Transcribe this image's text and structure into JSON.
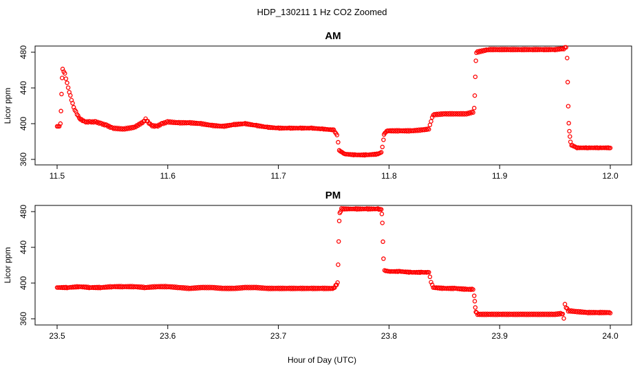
{
  "figure": {
    "title": "HDP_130211  1 Hz CO2 Zoomed",
    "xlabel": "Hour of Day (UTC)"
  },
  "colors": {
    "points": "#ff0000",
    "axes": "#000000",
    "background": "#ffffff"
  },
  "chart_data": [
    {
      "type": "scatter",
      "title": "AM",
      "xlabel": "",
      "ylabel": "Licor ppm",
      "xlim": [
        11.5,
        12.0
      ],
      "ylim": [
        360,
        490
      ],
      "xticks": [
        "11.5",
        "11.6",
        "11.7",
        "11.8",
        "11.9",
        "12.0"
      ],
      "yticks": [
        "360",
        "400",
        "440",
        "480"
      ],
      "grid": false,
      "series": [
        {
          "marker": "open-circle",
          "points": [
            [
              11.5,
              397
            ],
            [
              11.502,
              397
            ],
            [
              11.503,
              400
            ],
            [
              11.5035,
              414
            ],
            [
              11.504,
              433
            ],
            [
              11.5045,
              451
            ],
            [
              11.505,
              461
            ],
            [
              11.507,
              456
            ],
            [
              11.51,
              440
            ],
            [
              11.515,
              418
            ],
            [
              11.52,
              406
            ],
            [
              11.525,
              402
            ],
            [
              11.53,
              402
            ],
            [
              11.535,
              402
            ],
            [
              11.54,
              400
            ],
            [
              11.545,
              398
            ],
            [
              11.55,
              395
            ],
            [
              11.56,
              394
            ],
            [
              11.57,
              396
            ],
            [
              11.578,
              402
            ],
            [
              11.58,
              405
            ],
            [
              11.585,
              398
            ],
            [
              11.59,
              397
            ],
            [
              11.595,
              400
            ],
            [
              11.6,
              402
            ],
            [
              11.61,
              401
            ],
            [
              11.62,
              401
            ],
            [
              11.63,
              400
            ],
            [
              11.64,
              398
            ],
            [
              11.65,
              397
            ],
            [
              11.66,
              399
            ],
            [
              11.67,
              400
            ],
            [
              11.68,
              398
            ],
            [
              11.69,
              396
            ],
            [
              11.7,
              395
            ],
            [
              11.71,
              395
            ],
            [
              11.72,
              395
            ],
            [
              11.73,
              395
            ],
            [
              11.74,
              394
            ],
            [
              11.75,
              393
            ],
            [
              11.753,
              387
            ],
            [
              11.754,
              379
            ],
            [
              11.755,
              370
            ],
            [
              11.76,
              366
            ],
            [
              11.77,
              365
            ],
            [
              11.78,
              365
            ],
            [
              11.79,
              366
            ],
            [
              11.793,
              368
            ],
            [
              11.794,
              374
            ],
            [
              11.795,
              382
            ],
            [
              11.7955,
              388
            ],
            [
              11.798,
              392
            ],
            [
              11.81,
              392
            ],
            [
              11.82,
              392
            ],
            [
              11.83,
              393
            ],
            [
              11.836,
              394
            ],
            [
              11.837,
              399
            ],
            [
              11.838,
              403
            ],
            [
              11.84,
              410
            ],
            [
              11.85,
              411
            ],
            [
              11.86,
              411
            ],
            [
              11.87,
              411
            ],
            [
              11.876,
              413
            ],
            [
              11.877,
              418
            ],
            [
              11.8775,
              432
            ],
            [
              11.878,
              453
            ],
            [
              11.8785,
              471
            ],
            [
              11.879,
              480
            ],
            [
              11.89,
              483
            ],
            [
              11.9,
              483
            ],
            [
              11.91,
              483
            ],
            [
              11.92,
              483
            ],
            [
              11.93,
              483
            ],
            [
              11.94,
              483
            ],
            [
              11.95,
              483
            ],
            [
              11.958,
              484
            ],
            [
              11.96,
              486
            ],
            [
              11.961,
              474
            ],
            [
              11.9615,
              447
            ],
            [
              11.962,
              420
            ],
            [
              11.9625,
              401
            ],
            [
              11.963,
              392
            ],
            [
              11.9635,
              386
            ],
            [
              11.964,
              380
            ],
            [
              11.965,
              376
            ],
            [
              11.97,
              373
            ],
            [
              11.98,
              373
            ],
            [
              11.99,
              373
            ],
            [
              12.0,
              373
            ]
          ]
        }
      ]
    },
    {
      "type": "scatter",
      "title": "PM",
      "xlabel": "Hour of Day (UTC)",
      "ylabel": "Licor ppm",
      "xlim": [
        23.5,
        24.0
      ],
      "ylim": [
        355,
        490
      ],
      "xticks": [
        "23.5",
        "23.6",
        "23.7",
        "23.8",
        "23.9",
        "24.0"
      ],
      "yticks": [
        "360",
        "400",
        "440",
        "480"
      ],
      "grid": false,
      "series": [
        {
          "marker": "open-circle",
          "points": [
            [
              23.5,
              395
            ],
            [
              23.51,
              395
            ],
            [
              23.52,
              396
            ],
            [
              23.53,
              395
            ],
            [
              23.54,
              395
            ],
            [
              23.55,
              396
            ],
            [
              23.56,
              396
            ],
            [
              23.57,
              396
            ],
            [
              23.58,
              395
            ],
            [
              23.59,
              396
            ],
            [
              23.6,
              396
            ],
            [
              23.61,
              395
            ],
            [
              23.62,
              394
            ],
            [
              23.63,
              395
            ],
            [
              23.64,
              395
            ],
            [
              23.65,
              394
            ],
            [
              23.66,
              394
            ],
            [
              23.67,
              395
            ],
            [
              23.68,
              395
            ],
            [
              23.69,
              394
            ],
            [
              23.7,
              394
            ],
            [
              23.71,
              394
            ],
            [
              23.72,
              394
            ],
            [
              23.73,
              394
            ],
            [
              23.74,
              394
            ],
            [
              23.75,
              394
            ],
            [
              23.7535,
              400
            ],
            [
              23.754,
              420
            ],
            [
              23.7545,
              446
            ],
            [
              23.755,
              469
            ],
            [
              23.7555,
              478
            ],
            [
              23.757,
              483
            ],
            [
              23.77,
              483
            ],
            [
              23.78,
              483
            ],
            [
              23.79,
              483
            ],
            [
              23.793,
              482
            ],
            [
              23.7935,
              477
            ],
            [
              23.794,
              467
            ],
            [
              23.7945,
              446
            ],
            [
              23.795,
              427
            ],
            [
              23.796,
              414
            ],
            [
              23.8,
              413
            ],
            [
              23.81,
              413
            ],
            [
              23.82,
              412
            ],
            [
              23.83,
              412
            ],
            [
              23.836,
              412
            ],
            [
              23.837,
              407
            ],
            [
              23.838,
              401
            ],
            [
              23.84,
              395
            ],
            [
              23.85,
              394
            ],
            [
              23.86,
              394
            ],
            [
              23.87,
              393
            ],
            [
              23.876,
              393
            ],
            [
              23.877,
              386
            ],
            [
              23.8775,
              380
            ],
            [
              23.878,
              373
            ],
            [
              23.8785,
              368
            ],
            [
              23.88,
              365
            ],
            [
              23.89,
              365
            ],
            [
              23.9,
              365
            ],
            [
              23.91,
              365
            ],
            [
              23.92,
              365
            ],
            [
              23.93,
              365
            ],
            [
              23.94,
              365
            ],
            [
              23.95,
              365
            ],
            [
              23.957,
              366
            ],
            [
              23.958,
              361
            ],
            [
              23.959,
              377
            ],
            [
              23.96,
              373
            ],
            [
              23.962,
              369
            ],
            [
              23.97,
              368
            ],
            [
              23.98,
              367
            ],
            [
              23.99,
              367
            ],
            [
              24.0,
              367
            ]
          ]
        }
      ]
    }
  ]
}
